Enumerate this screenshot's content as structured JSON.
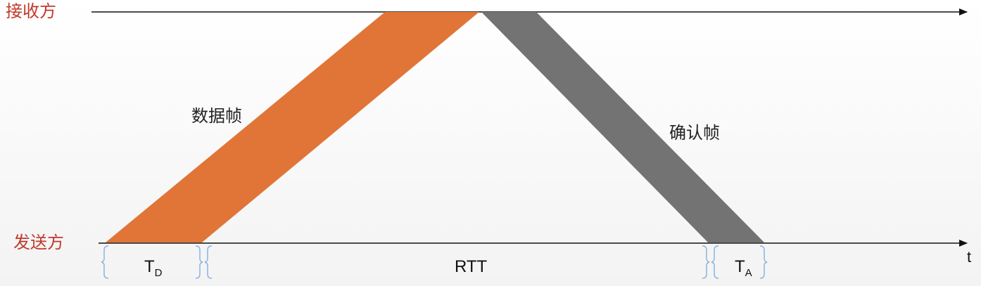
{
  "receiver": {
    "label": "接收方"
  },
  "sender": {
    "label": "发送方"
  },
  "data_frame": {
    "label": "数据帧",
    "color": "#e07537"
  },
  "ack_frame": {
    "label": "确认帧",
    "color": "#737373"
  },
  "intervals": {
    "td": {
      "main": "T",
      "sub": "D"
    },
    "rtt": {
      "label": "RTT"
    },
    "ta": {
      "main": "T",
      "sub": "A"
    }
  },
  "time_axis": {
    "label": "t"
  },
  "colors": {
    "role_label": "#c0392b",
    "axis": "#111111",
    "brace": "#8ab4e0"
  }
}
